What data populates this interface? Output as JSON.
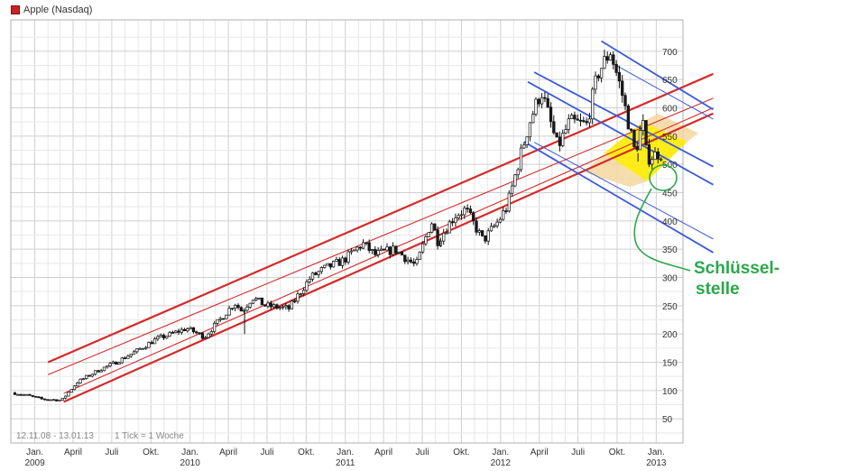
{
  "legend": {
    "label": "Apple (Nasdaq)",
    "color": "#cc2222"
  },
  "info": {
    "range": "12.11.08 - 13.01.13",
    "tick": "1 Tick = 1 Woche"
  },
  "annotation": {
    "line1": "Schlüssel-",
    "line2": "stelle",
    "color": "#2aa84a"
  },
  "chart_data": {
    "type": "candlestick",
    "title": "Apple (Nasdaq)",
    "ylim": [
      0,
      750
    ],
    "yticks": [
      50,
      100,
      150,
      200,
      250,
      300,
      350,
      400,
      450,
      500,
      550,
      600,
      650,
      700
    ],
    "x_month_ticks": [
      {
        "label": "Jan.",
        "date": "2009-01-01"
      },
      {
        "label": "April",
        "date": "2009-04-01"
      },
      {
        "label": "Juli",
        "date": "2009-07-01"
      },
      {
        "label": "Okt.",
        "date": "2009-10-01"
      },
      {
        "label": "Jan.",
        "date": "2010-01-01"
      },
      {
        "label": "April",
        "date": "2010-04-01"
      },
      {
        "label": "Juli",
        "date": "2010-07-01"
      },
      {
        "label": "Okt.",
        "date": "2010-10-01"
      },
      {
        "label": "Jan.",
        "date": "2011-01-01"
      },
      {
        "label": "April",
        "date": "2011-04-01"
      },
      {
        "label": "Juli",
        "date": "2011-07-01"
      },
      {
        "label": "Okt.",
        "date": "2011-10-01"
      },
      {
        "label": "Jan.",
        "date": "2012-01-01"
      },
      {
        "label": "April",
        "date": "2012-04-01"
      },
      {
        "label": "Juli",
        "date": "2012-07-01"
      },
      {
        "label": "Okt.",
        "date": "2012-10-01"
      },
      {
        "label": "Jan.",
        "date": "2013-01-01"
      }
    ],
    "x_year_labels": [
      {
        "label": "2009",
        "date": "2009-01-01"
      },
      {
        "label": "2010",
        "date": "2010-01-01"
      },
      {
        "label": "2011",
        "date": "2011-01-01"
      },
      {
        "label": "2012",
        "date": "2012-01-01"
      },
      {
        "label": "2013",
        "date": "2013-01-01"
      }
    ],
    "x_range": [
      "2008-11-12",
      "2013-01-13"
    ],
    "price_path": [
      [
        "2008-11-12",
        96
      ],
      [
        "2008-12-15",
        92
      ],
      [
        "2009-01-20",
        85
      ],
      [
        "2009-03-09",
        83
      ],
      [
        "2009-04-15",
        115
      ],
      [
        "2009-06-01",
        135
      ],
      [
        "2009-07-15",
        150
      ],
      [
        "2009-09-01",
        170
      ],
      [
        "2009-10-15",
        190
      ],
      [
        "2009-12-28",
        210
      ],
      [
        "2010-02-08",
        195
      ],
      [
        "2010-04-20",
        255
      ],
      [
        "2010-05-07",
        240
      ],
      [
        "2010-06-01",
        265
      ],
      [
        "2010-07-01",
        250
      ],
      [
        "2010-08-25",
        245
      ],
      [
        "2010-10-15",
        300
      ],
      [
        "2010-11-15",
        315
      ],
      [
        "2010-12-31",
        330
      ],
      [
        "2011-02-15",
        360
      ],
      [
        "2011-03-15",
        340
      ],
      [
        "2011-05-01",
        350
      ],
      [
        "2011-06-20",
        320
      ],
      [
        "2011-07-26",
        400
      ],
      [
        "2011-08-10",
        365
      ],
      [
        "2011-09-20",
        410
      ],
      [
        "2011-10-15",
        420
      ],
      [
        "2011-11-25",
        365
      ],
      [
        "2011-12-31",
        400
      ],
      [
        "2012-01-20",
        425
      ],
      [
        "2012-02-15",
        500
      ],
      [
        "2012-03-15",
        580
      ],
      [
        "2012-04-10",
        630
      ],
      [
        "2012-05-18",
        530
      ],
      [
        "2012-06-15",
        575
      ],
      [
        "2012-07-25",
        570
      ],
      [
        "2012-08-20",
        660
      ],
      [
        "2012-09-19",
        700
      ],
      [
        "2012-10-15",
        630
      ],
      [
        "2012-11-16",
        520
      ],
      [
        "2012-12-04",
        575
      ],
      [
        "2012-12-14",
        510
      ],
      [
        "2013-01-11",
        520
      ]
    ],
    "spikes": [
      {
        "date": "2010-05-06",
        "low": 200
      },
      {
        "date": "2011-08-09",
        "low": 355
      },
      {
        "date": "2012-11-16",
        "low": 505
      }
    ],
    "trend_lines": [
      {
        "name": "red-upper-outer",
        "color": "#d42a2a",
        "width": 2.2,
        "p1": [
          "2009-02-01",
          150
        ],
        "p2": [
          "2013-05-15",
          660
        ]
      },
      {
        "name": "red-upper-inner",
        "color": "#d42a2a",
        "width": 1.1,
        "p1": [
          "2009-02-01",
          128
        ],
        "p2": [
          "2013-05-15",
          617
        ]
      },
      {
        "name": "red-lower-inner",
        "color": "#d42a2a",
        "width": 1.1,
        "p1": [
          "2009-03-10",
          95
        ],
        "p2": [
          "2013-05-15",
          600
        ]
      },
      {
        "name": "red-lower-outer",
        "color": "#d42a2a",
        "width": 2.2,
        "p1": [
          "2009-03-10",
          80
        ],
        "p2": [
          "2013-05-15",
          590
        ]
      },
      {
        "name": "blue-1",
        "color": "#3a5ad8",
        "width": 1.8,
        "p1": [
          "2012-08-25",
          718
        ],
        "p2": [
          "2013-05-15",
          597
        ]
      },
      {
        "name": "blue-2",
        "color": "#3a5ad8",
        "width": 1.0,
        "p1": [
          "2012-10-01",
          674
        ],
        "p2": [
          "2013-05-15",
          580
        ]
      },
      {
        "name": "blue-3",
        "color": "#3a5ad8",
        "width": 1.8,
        "p1": [
          "2012-03-20",
          663
        ],
        "p2": [
          "2013-05-15",
          496
        ]
      },
      {
        "name": "blue-4",
        "color": "#3a5ad8",
        "width": 1.8,
        "p1": [
          "2012-03-05",
          646
        ],
        "p2": [
          "2013-05-15",
          464
        ]
      },
      {
        "name": "blue-5",
        "color": "#3a5ad8",
        "width": 1.0,
        "p1": [
          "2012-03-20",
          539
        ],
        "p2": [
          "2013-05-15",
          368
        ]
      },
      {
        "name": "blue-6",
        "color": "#3a5ad8",
        "width": 1.8,
        "p1": [
          "2012-02-25",
          540
        ],
        "p2": [
          "2013-05-15",
          344
        ]
      }
    ],
    "highlight_zone": {
      "color": "#ffea00",
      "points": [
        [
          "2012-09-01",
          520
        ],
        [
          "2012-11-30",
          575
        ],
        [
          "2013-03-15",
          540
        ],
        [
          "2012-12-10",
          470
        ]
      ]
    },
    "up_color": "#ffffff",
    "down_color": "#1a1a1a"
  }
}
